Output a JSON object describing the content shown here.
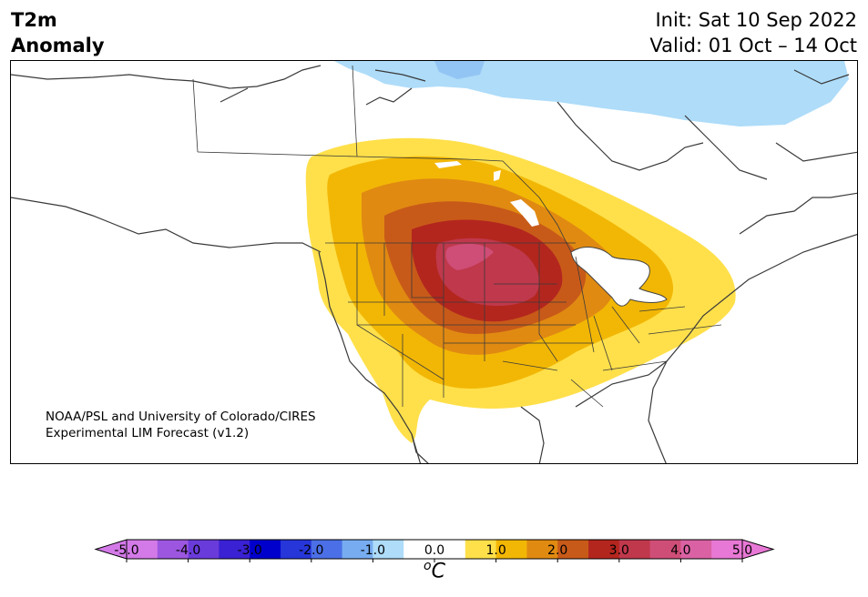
{
  "title": {
    "left_line1": "T2m",
    "left_line2": "Anomaly",
    "init": "Init: Sat 10 Sep 2022",
    "valid": "Valid: 01 Oct – 14 Oct"
  },
  "credit": {
    "line1": "NOAA/PSL and University of Colorado/CIRES",
    "line2": "Experimental LIM Forecast (v1.2)"
  },
  "colorbar": {
    "unit_sup": "o",
    "unit_base": "C",
    "colors": [
      "#d47ae8",
      "#9c56e0",
      "#6a3bdb",
      "#3a21d3",
      "#0000cd",
      "#2636d9",
      "#4b6fe6",
      "#77adf0",
      "#aedcf9",
      "#ffffff",
      "#ffffff",
      "#ffe04a",
      "#f2b705",
      "#e08a12",
      "#c85a19",
      "#b3261e",
      "#c0384c",
      "#cf4e77",
      "#da62a4",
      "#e878d5"
    ],
    "ticks": [
      "-5.0",
      "-4.0",
      "-3.0",
      "-2.0",
      "-1.0",
      "0.0",
      "1.0",
      "2.0",
      "3.0",
      "4.0",
      "5.0"
    ]
  },
  "map": {
    "region": "North America",
    "shading": [
      {
        "level": "+0.5 to +1.0",
        "color": "#ffe04a"
      },
      {
        "level": "+1.0 to +1.5",
        "color": "#f2b705"
      },
      {
        "level": "+1.5 to +2.0",
        "color": "#e08a12"
      },
      {
        "level": "+2.0 to +2.5",
        "color": "#c85a19"
      },
      {
        "level": "+2.5 to +3.0",
        "color": "#b3261e"
      },
      {
        "level": "+3.0 to +3.5",
        "color": "#c0384c"
      },
      {
        "level": "-0.5 to -1.0",
        "color": "#aedcf9"
      }
    ]
  }
}
